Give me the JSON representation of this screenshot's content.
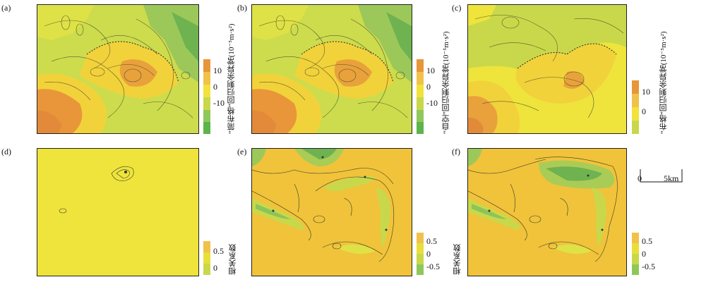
{
  "panels": {
    "a": {
      "label": "(a)"
    },
    "b": {
      "label": "(b)"
    },
    "c": {
      "label": "(c)"
    },
    "d": {
      "label": "(d)"
    },
    "e": {
      "label": "(e)"
    },
    "f": {
      "label": "(f)"
    }
  },
  "colorbars": {
    "top_ab": {
      "ticks": [
        "10",
        "0",
        "-10"
      ],
      "colors": [
        "#e8963a",
        "#f0c24a",
        "#f2e23c",
        "#c8d84a",
        "#8fc85a",
        "#5cb54a"
      ]
    },
    "top_c": {
      "ticks": [
        "10",
        "0"
      ],
      "colors": [
        "#e8963a",
        "#f0c24a",
        "#f2e23c",
        "#c8d84a"
      ]
    },
    "bottom_d": {
      "ticks": [
        "0.5",
        "0"
      ],
      "colors": [
        "#f0c24a",
        "#e8df3a",
        "#c8d84a"
      ]
    },
    "bottom_ef": {
      "ticks": [
        "0.5",
        "0",
        "-0.5"
      ],
      "colors": [
        "#f0c24a",
        "#e8df3a",
        "#c8d84a",
        "#8fc85a"
      ]
    }
  },
  "axis_labels": {
    "a_b": "“简布格”回归剩余异常(10⁻⁵m·s²)",
    "b_c": "“自空”回归剩余异常(10⁻⁵m·s²)",
    "c_right": "“布格”回归剩余异常(10⁻⁵m·s²)",
    "corr": "相关系数"
  },
  "scale_bar": {
    "start": "0",
    "end": "5km"
  },
  "colors": {
    "orange": "#e9a23b",
    "yellow": "#f2d23a",
    "light_yellow": "#eee43c",
    "yellow_green": "#c9d84a",
    "green": "#8cc45a",
    "dark_green": "#5aa84a",
    "contour": "#3a3a2a"
  }
}
